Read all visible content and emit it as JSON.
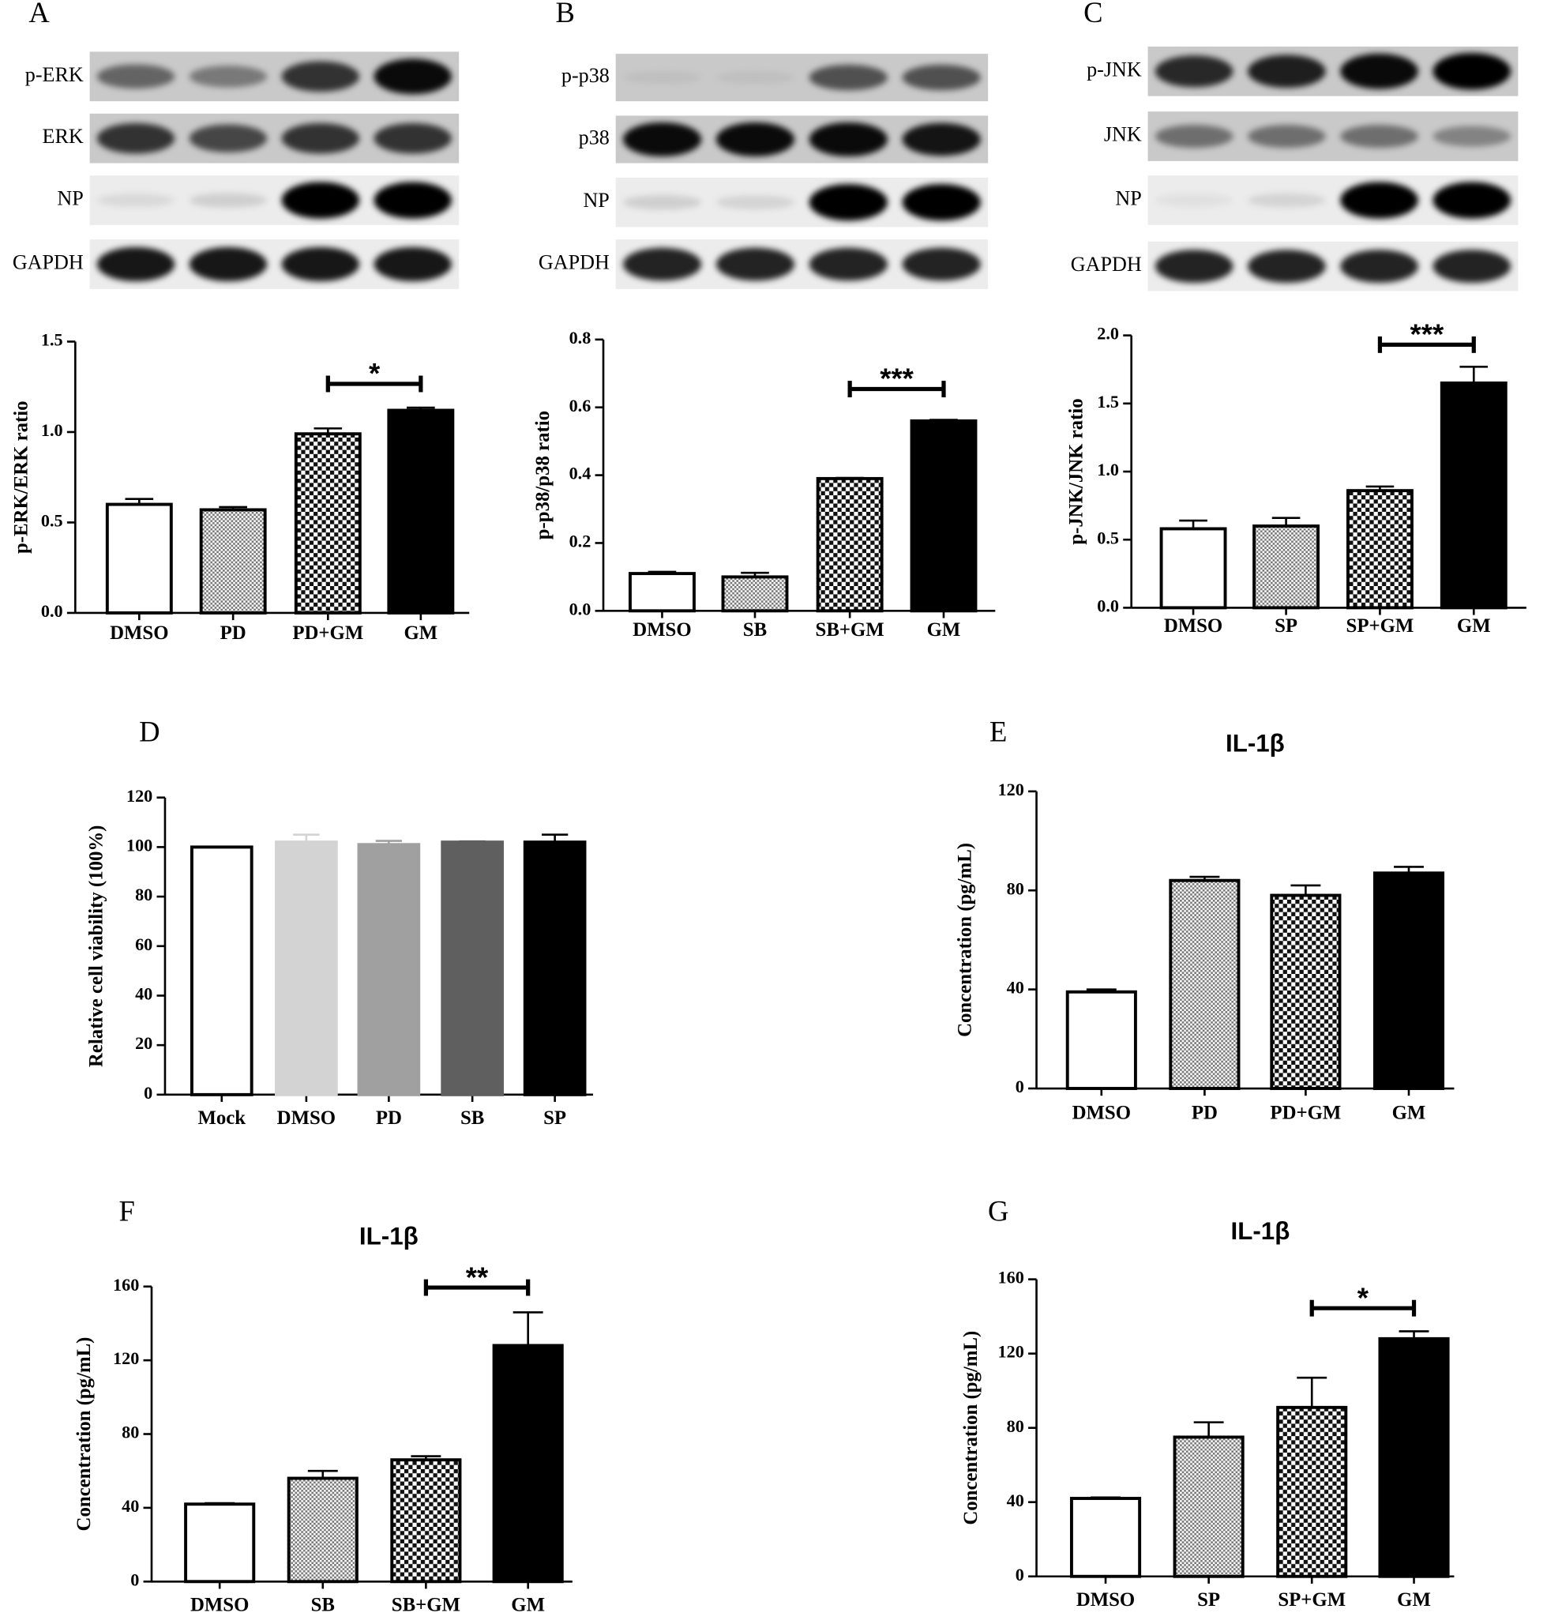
{
  "chart_data": [
    {
      "type": "bar",
      "panel": "A",
      "y_label": "p-ERK/ERK ratio",
      "blot_labels": [
        "p-ERK",
        "ERK",
        "NP",
        "GAPDH"
      ],
      "categories": [
        "DMSO",
        "PD",
        "PD+GM",
        "GM"
      ],
      "values": [
        0.6,
        0.57,
        0.99,
        1.12
      ],
      "errors": [
        0.03,
        0.015,
        0.03,
        0.015
      ],
      "bar_styles": [
        "open",
        "fine-check",
        "check",
        "solid"
      ],
      "ylim": [
        0,
        1.5
      ],
      "yticks": [
        {
          "value": 0,
          "label": "0.0"
        },
        0.5,
        {
          "value": 1,
          "label": "1.0"
        },
        1.5
      ],
      "significance": {
        "label": "*",
        "from": 2,
        "to": 3
      }
    },
    {
      "type": "bar",
      "panel": "B",
      "y_label": "p-p38/p38 ratio",
      "blot_labels": [
        "p-p38",
        "p38",
        "NP",
        "GAPDH"
      ],
      "categories": [
        "DMSO",
        "SB",
        "SB+GM",
        "GM"
      ],
      "values": [
        0.11,
        0.1,
        0.39,
        0.56
      ],
      "errors": [
        0.005,
        0.012,
        0.002,
        0.003
      ],
      "bar_styles": [
        "open",
        "fine-check",
        "check",
        "solid"
      ],
      "ylim": [
        0,
        0.8
      ],
      "yticks": [
        {
          "value": 0,
          "label": "0.0"
        },
        0.2,
        0.4,
        0.6,
        0.8
      ],
      "significance": {
        "label": "***",
        "from": 2,
        "to": 3
      }
    },
    {
      "type": "bar",
      "panel": "C",
      "y_label": "p-JNK/JNK ratio",
      "blot_labels": [
        "p-JNK",
        "JNK",
        "NP",
        "GAPDH"
      ],
      "categories": [
        "DMSO",
        "SP",
        "SP+GM",
        "GM"
      ],
      "values": [
        0.58,
        0.6,
        0.86,
        1.65
      ],
      "errors": [
        0.06,
        0.06,
        0.03,
        0.12
      ],
      "bar_styles": [
        "open",
        "fine-check",
        "check",
        "solid"
      ],
      "ylim": [
        0,
        2
      ],
      "yticks": [
        {
          "value": 0,
          "label": "0.0"
        },
        0.5,
        {
          "value": 1,
          "label": "1.0"
        },
        1.5,
        {
          "value": 2,
          "label": "2.0"
        }
      ],
      "significance": {
        "label": "***",
        "from": 2,
        "to": 3
      }
    },
    {
      "type": "bar",
      "panel": "D",
      "y_label": "Relative cell viability (100%)",
      "categories": [
        "Mock",
        "DMSO",
        "PD",
        "SB",
        "SP"
      ],
      "values": [
        100,
        102,
        101,
        102,
        102
      ],
      "errors": [
        0,
        3,
        1.5,
        0.3,
        3
      ],
      "bar_styles": [
        "open",
        "#d3d3d3",
        "#a0a0a0",
        "#5f5f5f",
        "#000000"
      ],
      "ylim": [
        0,
        120
      ],
      "yticks": [
        0,
        20,
        40,
        60,
        80,
        100,
        120
      ]
    },
    {
      "type": "bar",
      "panel": "E",
      "title": "IL-1β",
      "y_label": "Concentration (pg/mL)",
      "categories": [
        "DMSO",
        "PD",
        "PD+GM",
        "GM"
      ],
      "values": [
        39,
        84,
        78,
        87
      ],
      "errors": [
        1,
        1.5,
        4,
        2.5
      ],
      "bar_styles": [
        "open",
        "fine-check",
        "check",
        "solid"
      ],
      "ylim": [
        0,
        120
      ],
      "yticks": [
        0,
        40,
        80,
        120
      ]
    },
    {
      "type": "bar",
      "panel": "F",
      "title": "IL-1β",
      "y_label": "Concentration (pg/mL)",
      "categories": [
        "DMSO",
        "SB",
        "SB+GM",
        "GM"
      ],
      "values": [
        42,
        56,
        66,
        128
      ],
      "errors": [
        0.5,
        4,
        2,
        18
      ],
      "bar_styles": [
        "open",
        "fine-check",
        "check",
        "solid"
      ],
      "ylim": [
        0,
        160
      ],
      "yticks": [
        0,
        40,
        80,
        120,
        160
      ],
      "significance": {
        "label": "**",
        "from": 2,
        "to": 3
      }
    },
    {
      "type": "bar",
      "panel": "G",
      "title": "IL-1β",
      "y_label": "Concentration (pg/mL)",
      "categories": [
        "DMSO",
        "SP",
        "SP+GM",
        "GM"
      ],
      "values": [
        42,
        75,
        91,
        128
      ],
      "errors": [
        0.5,
        8,
        16,
        4
      ],
      "bar_styles": [
        "open",
        "fine-check",
        "check",
        "solid"
      ],
      "ylim": [
        0,
        160
      ],
      "yticks": [
        0,
        40,
        80,
        120,
        160
      ],
      "significance": {
        "label": "*",
        "from": 2,
        "to": 3
      }
    }
  ]
}
